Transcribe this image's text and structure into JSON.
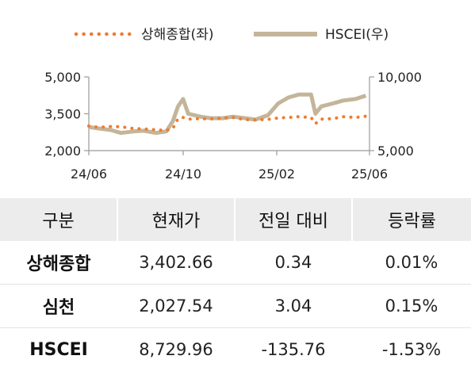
{
  "chart_data": {
    "type": "line",
    "x_tick_labels": [
      "24/06",
      "24/10",
      "25/02",
      "25/06"
    ],
    "y_left": {
      "ticks": [
        "5,000",
        "3,500",
        "2,000"
      ],
      "range": [
        2000,
        5000
      ]
    },
    "y_right": {
      "ticks": [
        "10,000",
        "5,000"
      ],
      "range": [
        5000,
        10000
      ]
    },
    "series": [
      {
        "name": "상해종합(좌)",
        "axis": "left",
        "style": "dotted",
        "color": "#ED7D31",
        "x": [
          "2024-06-01",
          "2024-06-15",
          "2024-07-01",
          "2024-07-15",
          "2024-08-01",
          "2024-08-15",
          "2024-09-01",
          "2024-09-15",
          "2024-09-24",
          "2024-10-01",
          "2024-10-08",
          "2024-10-15",
          "2024-11-01",
          "2024-11-15",
          "2024-12-01",
          "2024-12-15",
          "2025-01-01",
          "2025-01-15",
          "2025-02-01",
          "2025-02-15",
          "2025-03-01",
          "2025-03-15",
          "2025-04-01",
          "2025-04-07",
          "2025-04-15",
          "2025-05-01",
          "2025-05-15",
          "2025-06-01",
          "2025-06-15"
        ],
        "values": [
          3000,
          2950,
          2980,
          2970,
          2900,
          2880,
          2850,
          2820,
          2900,
          3300,
          3350,
          3280,
          3300,
          3290,
          3320,
          3350,
          3260,
          3250,
          3270,
          3330,
          3350,
          3380,
          3350,
          3100,
          3280,
          3300,
          3380,
          3350,
          3400
        ]
      },
      {
        "name": "HSCEI(우)",
        "axis": "right",
        "style": "solid",
        "color": "#C4B59A",
        "x": [
          "2024-06-01",
          "2024-06-15",
          "2024-07-01",
          "2024-07-15",
          "2024-08-01",
          "2024-08-15",
          "2024-09-01",
          "2024-09-15",
          "2024-09-24",
          "2024-10-01",
          "2024-10-08",
          "2024-10-15",
          "2024-11-01",
          "2024-11-15",
          "2024-12-01",
          "2024-12-15",
          "2025-01-01",
          "2025-01-15",
          "2025-02-01",
          "2025-02-15",
          "2025-03-01",
          "2025-03-15",
          "2025-04-01",
          "2025-04-07",
          "2025-04-15",
          "2025-05-01",
          "2025-05-15",
          "2025-06-01",
          "2025-06-15"
        ],
        "values": [
          6600,
          6500,
          6400,
          6200,
          6300,
          6350,
          6200,
          6300,
          7000,
          8000,
          8500,
          7500,
          7300,
          7200,
          7200,
          7300,
          7200,
          7100,
          7400,
          8200,
          8600,
          8800,
          8800,
          7500,
          8000,
          8200,
          8400,
          8500,
          8730
        ]
      }
    ]
  },
  "table": {
    "headers": [
      "구분",
      "현재가",
      "전일 대비",
      "등락률"
    ],
    "rows": [
      {
        "name": "상해종합",
        "price": "3,402.66",
        "change": "0.34",
        "rate": "0.01%"
      },
      {
        "name": "심천",
        "price": "2,027.54",
        "change": "3.04",
        "rate": "0.15%"
      },
      {
        "name": "HSCEI",
        "price": "8,729.96",
        "change": "-135.76",
        "rate": "-1.53%"
      }
    ]
  }
}
